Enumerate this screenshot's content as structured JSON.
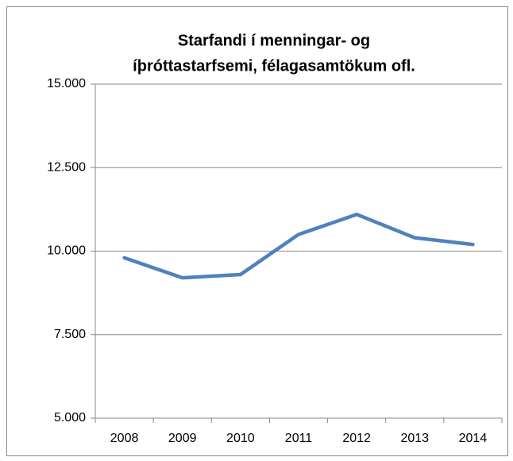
{
  "chart_data": {
    "type": "line",
    "title": [
      "Starfandi í menningar- og",
      "íþróttastarfsemi, félagasamtökum ofl."
    ],
    "categories": [
      "2008",
      "2009",
      "2010",
      "2011",
      "2012",
      "2013",
      "2014"
    ],
    "series": [
      {
        "name": "Starfandi",
        "color": "#4f81bd",
        "values": [
          9800,
          9200,
          9300,
          10500,
          11100,
          10400,
          10200
        ]
      }
    ],
    "ylim": [
      5000,
      15000
    ],
    "yticks": [
      {
        "value": 5000,
        "label": "5.000"
      },
      {
        "value": 7500,
        "label": "7.500"
      },
      {
        "value": 10000,
        "label": "10.000"
      },
      {
        "value": 12500,
        "label": "12.500"
      },
      {
        "value": 15000,
        "label": "15.000"
      }
    ],
    "grid": true,
    "legend": false
  }
}
